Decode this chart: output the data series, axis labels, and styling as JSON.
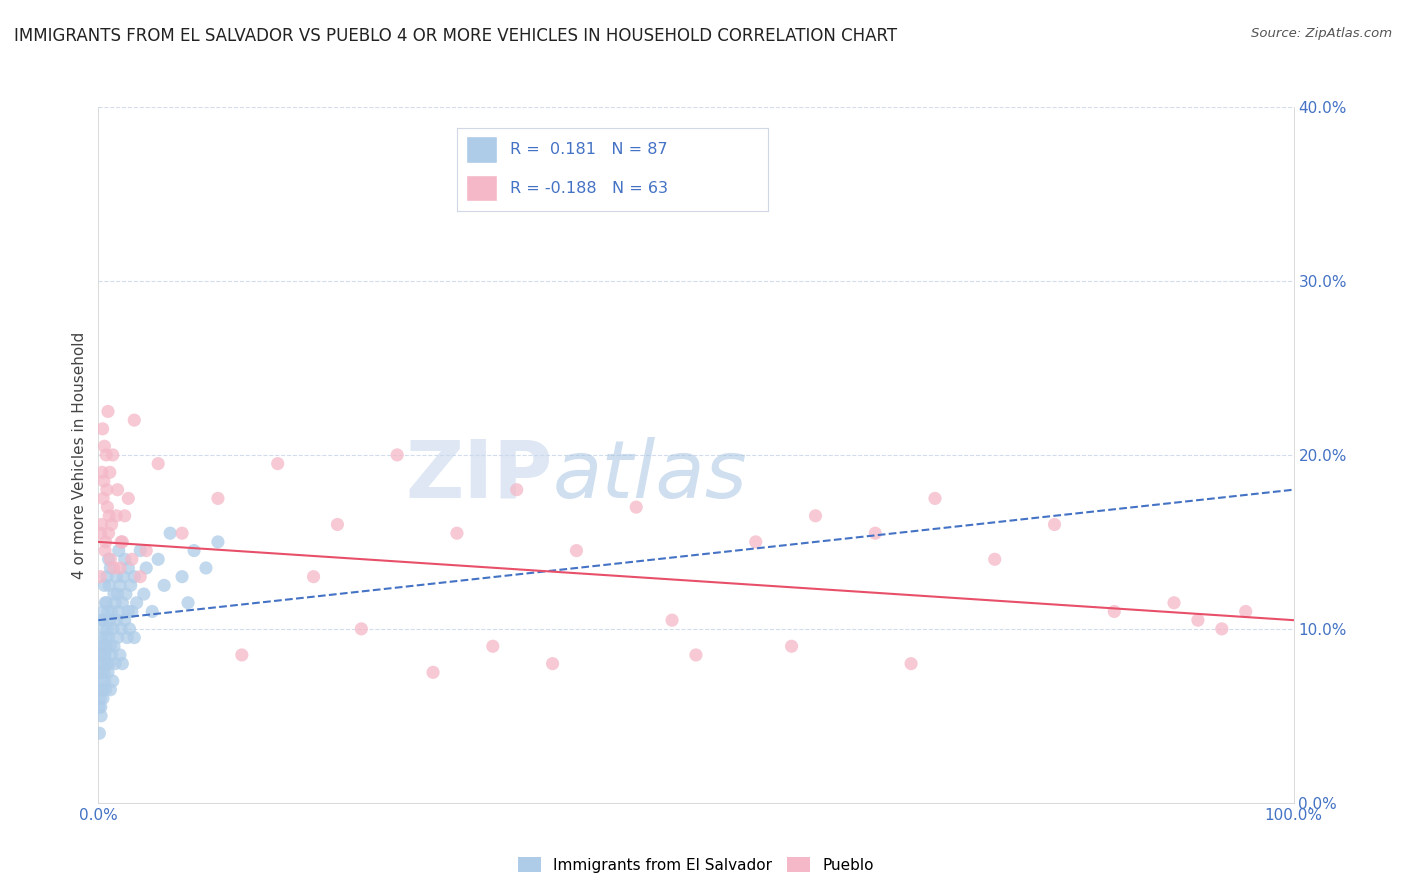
{
  "title": "IMMIGRANTS FROM EL SALVADOR VS PUEBLO 4 OR MORE VEHICLES IN HOUSEHOLD CORRELATION CHART",
  "source": "Source: ZipAtlas.com",
  "ylabel": "4 or more Vehicles in Household",
  "xlim": [
    0.0,
    100.0
  ],
  "ylim": [
    0.0,
    40.0
  ],
  "yticks": [
    0,
    10,
    20,
    30,
    40
  ],
  "ytick_labels": [
    "0.0%",
    "10.0%",
    "20.0%",
    "30.0%",
    "40.0%"
  ],
  "xtick_labels": [
    "0.0%",
    "100.0%"
  ],
  "legend_r_blue": " 0.181",
  "legend_n_blue": "87",
  "legend_r_pink": "-0.188",
  "legend_n_pink": "63",
  "blue_color": "#aecce8",
  "pink_color": "#f4b8c8",
  "blue_line_color": "#4472c4",
  "pink_line_color": "#e8506a",
  "legend_text_color": "#4472c4",
  "watermark_zip": "ZIP",
  "watermark_atlas": "atlas",
  "blue_trend_x": [
    0,
    100
  ],
  "blue_trend_y": [
    10.5,
    18.0
  ],
  "pink_trend_x": [
    0,
    100
  ],
  "pink_trend_y": [
    15.0,
    10.5
  ],
  "blue_scatter": [
    [
      0.1,
      7.5
    ],
    [
      0.15,
      6.0
    ],
    [
      0.2,
      5.5
    ],
    [
      0.2,
      8.5
    ],
    [
      0.25,
      9.5
    ],
    [
      0.3,
      7.0
    ],
    [
      0.3,
      10.5
    ],
    [
      0.35,
      6.5
    ],
    [
      0.4,
      8.0
    ],
    [
      0.4,
      11.0
    ],
    [
      0.45,
      9.0
    ],
    [
      0.5,
      7.5
    ],
    [
      0.5,
      10.0
    ],
    [
      0.5,
      12.5
    ],
    [
      0.55,
      8.5
    ],
    [
      0.6,
      6.5
    ],
    [
      0.6,
      9.5
    ],
    [
      0.65,
      11.5
    ],
    [
      0.7,
      8.0
    ],
    [
      0.7,
      13.0
    ],
    [
      0.75,
      10.0
    ],
    [
      0.8,
      7.5
    ],
    [
      0.8,
      11.0
    ],
    [
      0.85,
      9.5
    ],
    [
      0.85,
      14.0
    ],
    [
      0.9,
      8.0
    ],
    [
      0.9,
      12.5
    ],
    [
      0.95,
      10.5
    ],
    [
      1.0,
      6.5
    ],
    [
      1.0,
      9.0
    ],
    [
      1.0,
      13.5
    ],
    [
      1.1,
      11.0
    ],
    [
      1.1,
      8.5
    ],
    [
      1.2,
      10.0
    ],
    [
      1.2,
      7.0
    ],
    [
      1.3,
      12.0
    ],
    [
      1.3,
      9.0
    ],
    [
      1.4,
      11.5
    ],
    [
      1.4,
      8.0
    ],
    [
      1.5,
      10.5
    ],
    [
      1.5,
      13.0
    ],
    [
      1.6,
      9.5
    ],
    [
      1.6,
      12.0
    ],
    [
      1.7,
      11.0
    ],
    [
      1.7,
      14.5
    ],
    [
      1.8,
      8.5
    ],
    [
      1.8,
      12.5
    ],
    [
      1.9,
      10.0
    ],
    [
      2.0,
      11.5
    ],
    [
      2.0,
      8.0
    ],
    [
      2.1,
      13.0
    ],
    [
      2.2,
      10.5
    ],
    [
      2.2,
      14.0
    ],
    [
      2.3,
      12.0
    ],
    [
      2.4,
      9.5
    ],
    [
      2.5,
      11.0
    ],
    [
      2.5,
      13.5
    ],
    [
      2.6,
      10.0
    ],
    [
      2.7,
      12.5
    ],
    [
      2.8,
      11.0
    ],
    [
      3.0,
      13.0
    ],
    [
      3.0,
      9.5
    ],
    [
      3.2,
      11.5
    ],
    [
      3.5,
      14.5
    ],
    [
      3.8,
      12.0
    ],
    [
      4.0,
      13.5
    ],
    [
      4.5,
      11.0
    ],
    [
      5.0,
      14.0
    ],
    [
      5.5,
      12.5
    ],
    [
      6.0,
      15.5
    ],
    [
      7.0,
      13.0
    ],
    [
      7.5,
      11.5
    ],
    [
      8.0,
      14.5
    ],
    [
      9.0,
      13.5
    ],
    [
      10.0,
      15.0
    ],
    [
      0.05,
      5.5
    ],
    [
      0.08,
      4.0
    ],
    [
      0.12,
      6.5
    ],
    [
      0.18,
      8.0
    ],
    [
      0.22,
      5.0
    ],
    [
      0.28,
      7.5
    ],
    [
      0.32,
      9.0
    ],
    [
      0.38,
      6.0
    ],
    [
      0.42,
      10.5
    ],
    [
      0.48,
      8.5
    ],
    [
      0.52,
      7.0
    ],
    [
      0.58,
      11.5
    ],
    [
      0.62,
      9.0
    ]
  ],
  "pink_scatter": [
    [
      0.2,
      15.5
    ],
    [
      0.3,
      19.0
    ],
    [
      0.4,
      17.5
    ],
    [
      0.5,
      20.5
    ],
    [
      0.6,
      15.0
    ],
    [
      0.7,
      18.0
    ],
    [
      0.8,
      22.5
    ],
    [
      0.9,
      16.5
    ],
    [
      1.0,
      14.0
    ],
    [
      1.2,
      20.0
    ],
    [
      1.5,
      16.5
    ],
    [
      1.8,
      13.5
    ],
    [
      2.0,
      15.0
    ],
    [
      2.5,
      17.5
    ],
    [
      3.0,
      22.0
    ],
    [
      4.0,
      14.5
    ],
    [
      5.0,
      19.5
    ],
    [
      0.15,
      13.0
    ],
    [
      0.25,
      16.0
    ],
    [
      0.35,
      21.5
    ],
    [
      0.45,
      18.5
    ],
    [
      0.55,
      14.5
    ],
    [
      0.65,
      20.0
    ],
    [
      0.75,
      17.0
    ],
    [
      0.85,
      15.5
    ],
    [
      0.95,
      19.0
    ],
    [
      1.1,
      16.0
    ],
    [
      1.3,
      13.5
    ],
    [
      1.6,
      18.0
    ],
    [
      1.9,
      15.0
    ],
    [
      2.2,
      16.5
    ],
    [
      2.8,
      14.0
    ],
    [
      3.5,
      13.0
    ],
    [
      10.0,
      17.5
    ],
    [
      15.0,
      19.5
    ],
    [
      20.0,
      16.0
    ],
    [
      25.0,
      20.0
    ],
    [
      30.0,
      15.5
    ],
    [
      35.0,
      18.0
    ],
    [
      40.0,
      14.5
    ],
    [
      45.0,
      17.0
    ],
    [
      50.0,
      8.5
    ],
    [
      55.0,
      15.0
    ],
    [
      60.0,
      16.5
    ],
    [
      65.0,
      15.5
    ],
    [
      70.0,
      17.5
    ],
    [
      75.0,
      14.0
    ],
    [
      80.0,
      16.0
    ],
    [
      85.0,
      11.0
    ],
    [
      90.0,
      11.5
    ],
    [
      92.0,
      10.5
    ],
    [
      94.0,
      10.0
    ],
    [
      96.0,
      11.0
    ],
    [
      7.0,
      15.5
    ],
    [
      12.0,
      8.5
    ],
    [
      18.0,
      13.0
    ],
    [
      22.0,
      10.0
    ],
    [
      28.0,
      7.5
    ],
    [
      33.0,
      9.0
    ],
    [
      38.0,
      8.0
    ],
    [
      48.0,
      10.5
    ],
    [
      58.0,
      9.0
    ],
    [
      68.0,
      8.0
    ]
  ]
}
